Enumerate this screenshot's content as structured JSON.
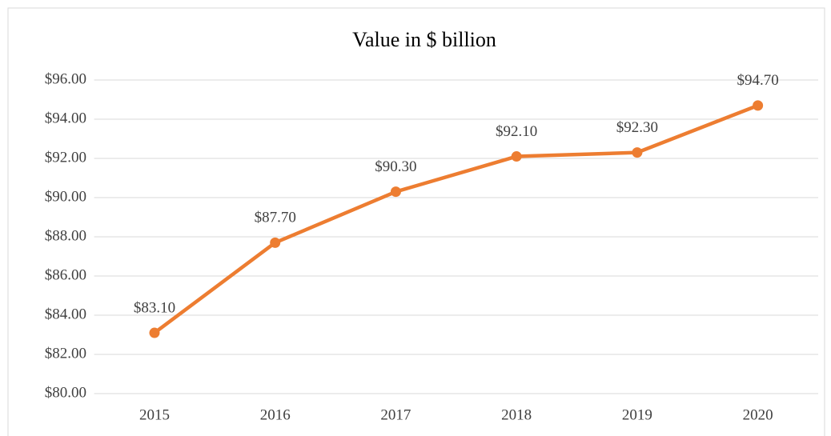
{
  "chart_data": {
    "type": "line",
    "title": "Value in $ billion",
    "categories": [
      "2015",
      "2016",
      "2017",
      "2018",
      "2019",
      "2020"
    ],
    "series": [
      {
        "name": "Value",
        "color": "#ed7d31",
        "values": [
          83.1,
          87.7,
          90.3,
          92.1,
          92.3,
          94.7
        ],
        "value_labels": [
          "$83.10",
          "$87.70",
          "$90.30",
          "$92.10",
          "$92.30",
          "$94.70"
        ]
      }
    ],
    "ylim": [
      80,
      96
    ],
    "yticks": [
      {
        "value": 80,
        "label": "$80.00"
      },
      {
        "value": 82,
        "label": "$82.00"
      },
      {
        "value": 84,
        "label": "$84.00"
      },
      {
        "value": 86,
        "label": "$86.00"
      },
      {
        "value": 88,
        "label": "$88.00"
      },
      {
        "value": 90,
        "label": "$90.00"
      },
      {
        "value": 92,
        "label": "$92.00"
      },
      {
        "value": 94,
        "label": "$94.00"
      },
      {
        "value": 96,
        "label": "$96.00"
      }
    ],
    "grid": true
  }
}
